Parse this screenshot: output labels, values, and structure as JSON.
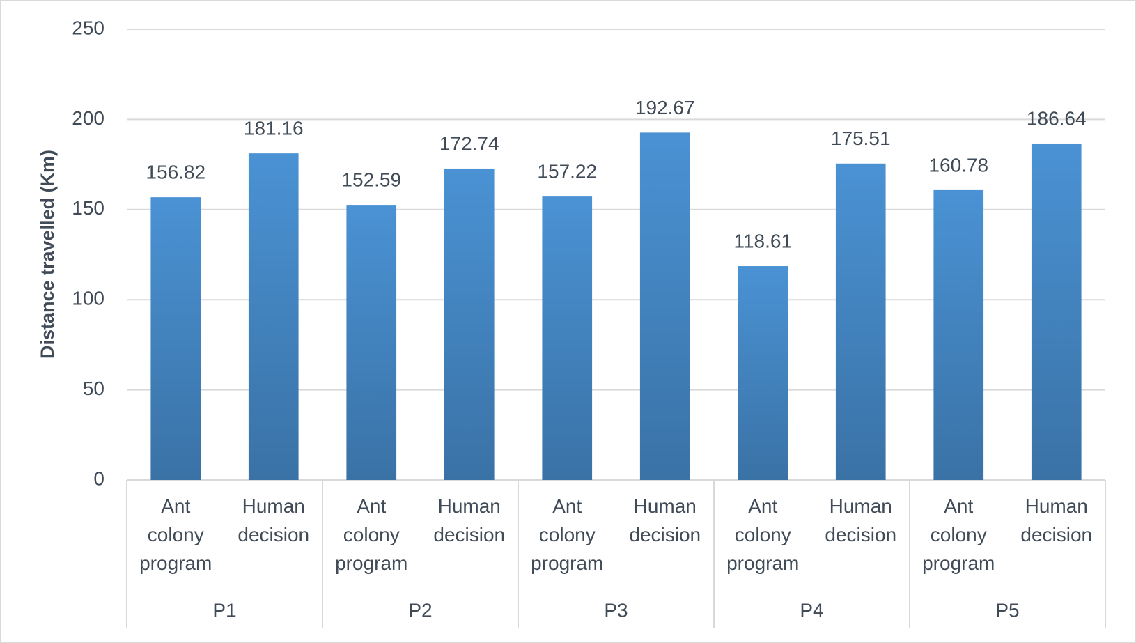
{
  "chart_data": {
    "type": "bar",
    "y_label": "Distance travelled (Km)",
    "categories": [
      "Ant colony program",
      "Human decision",
      "Ant colony program",
      "Human decision",
      "Ant colony program",
      "Human decision",
      "Ant colony program",
      "Human decision",
      "Ant colony program",
      "Human decision"
    ],
    "groups": [
      "P1",
      "P2",
      "P3",
      "P4",
      "P5"
    ],
    "values": [
      156.82,
      181.16,
      152.59,
      172.74,
      157.22,
      192.67,
      118.61,
      175.51,
      160.78,
      186.64
    ],
    "color": "#4a92d4",
    "ylim": [
      0,
      250
    ],
    "yticks": [
      0,
      50,
      100,
      150,
      200,
      250
    ],
    "grid": true
  }
}
